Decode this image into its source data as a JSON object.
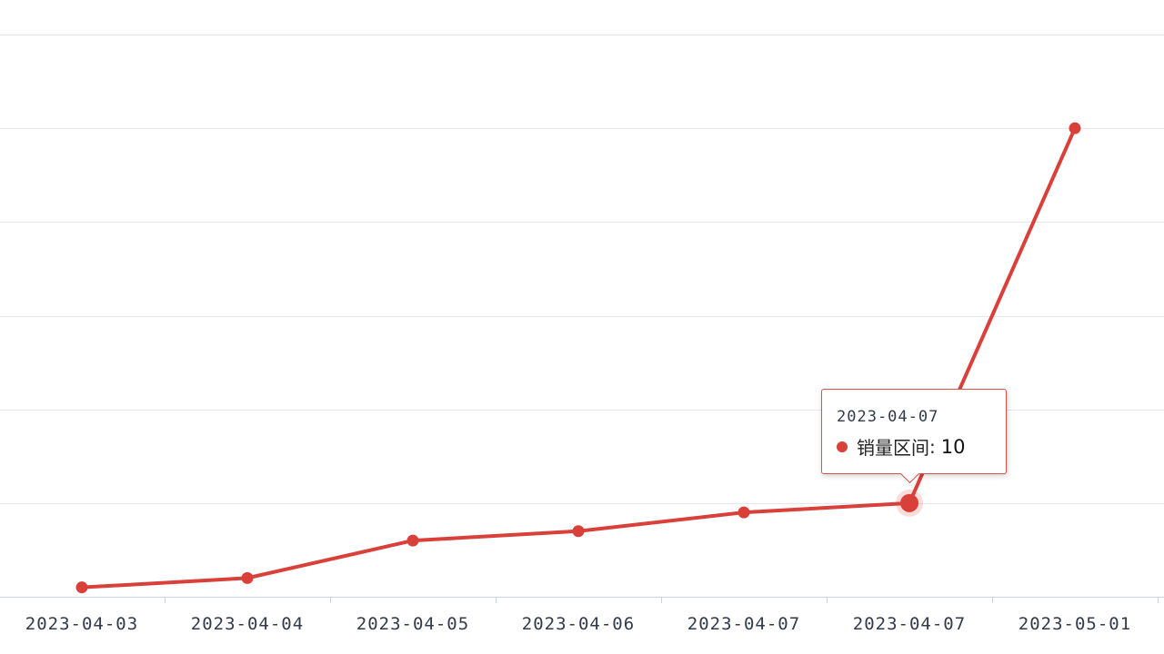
{
  "chart_data": {
    "type": "line",
    "categories": [
      "2023-04-03",
      "2023-04-04",
      "2023-04-05",
      "2023-04-06",
      "2023-04-07",
      "2023-04-07",
      "2023-05-01"
    ],
    "series": [
      {
        "name": "销量区间",
        "values": [
          1,
          2,
          6,
          7,
          9,
          10,
          50
        ]
      }
    ],
    "ylim": [
      0,
      60
    ],
    "grid": true,
    "colors": {
      "line": "#d9403a",
      "grid": "#e3e8f0",
      "axis": "#c8d3e6"
    }
  },
  "tooltip": {
    "title": "2023-04-07",
    "series_name": "销量区间",
    "separator": ":",
    "value": "10",
    "point_index": 5
  }
}
